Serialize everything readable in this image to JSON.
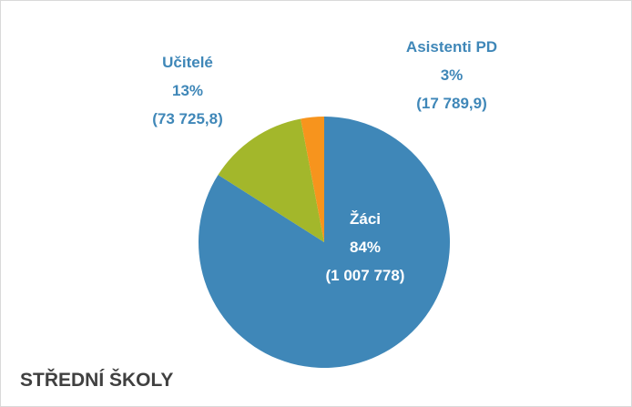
{
  "chart_data": {
    "type": "pie",
    "title": "STŘEDNÍ ŠKOLY",
    "categories": [
      "Žáci",
      "Učitelé",
      "Asistenti PD"
    ],
    "values": [
      84,
      13,
      3
    ],
    "value_labels": [
      "84%",
      "13%",
      "3%"
    ],
    "amount_labels": [
      "(1 007 778)",
      "(73 725,8)",
      "(17 789,9)"
    ],
    "colors": [
      "#3f87b8",
      "#a3b72b",
      "#f7941d"
    ]
  }
}
